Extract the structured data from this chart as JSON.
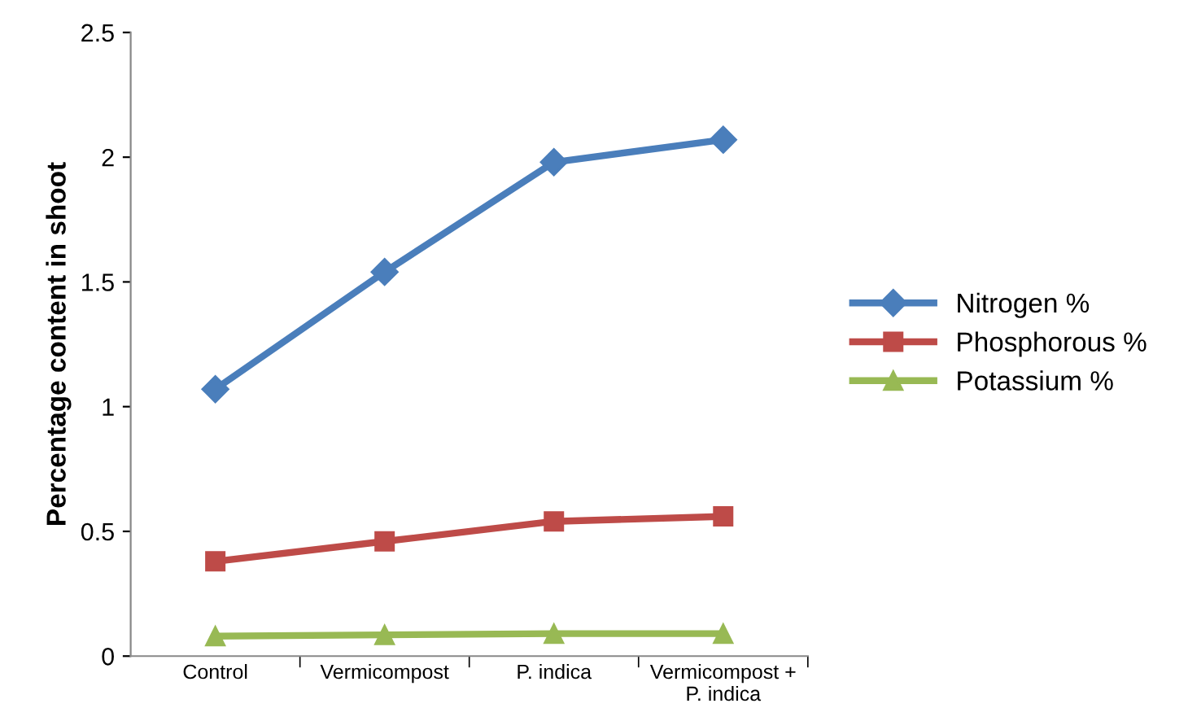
{
  "chart_data": {
    "type": "line",
    "ylabel": "Percentage content in shoot",
    "categories": [
      "Control",
      "Vermicompost",
      "P. indica",
      "Vermicompost +\nP. indica"
    ],
    "series": [
      {
        "name": "Nitrogen %",
        "color": "#4a7ebb",
        "marker": "diamond",
        "values": [
          1.07,
          1.54,
          1.98,
          2.07
        ]
      },
      {
        "name": "Phosphorous %",
        "color": "#be4b48",
        "marker": "square",
        "values": [
          0.38,
          0.46,
          0.54,
          0.56
        ]
      },
      {
        "name": "Potassium %",
        "color": "#98b954",
        "marker": "triangle",
        "values": [
          0.08,
          0.085,
          0.09,
          0.09
        ]
      }
    ],
    "ylim": [
      0,
      2.5
    ],
    "yticks": [
      0,
      0.5,
      1,
      1.5,
      2,
      2.5
    ],
    "grid": false,
    "legend": "right",
    "line_style": "solid"
  }
}
